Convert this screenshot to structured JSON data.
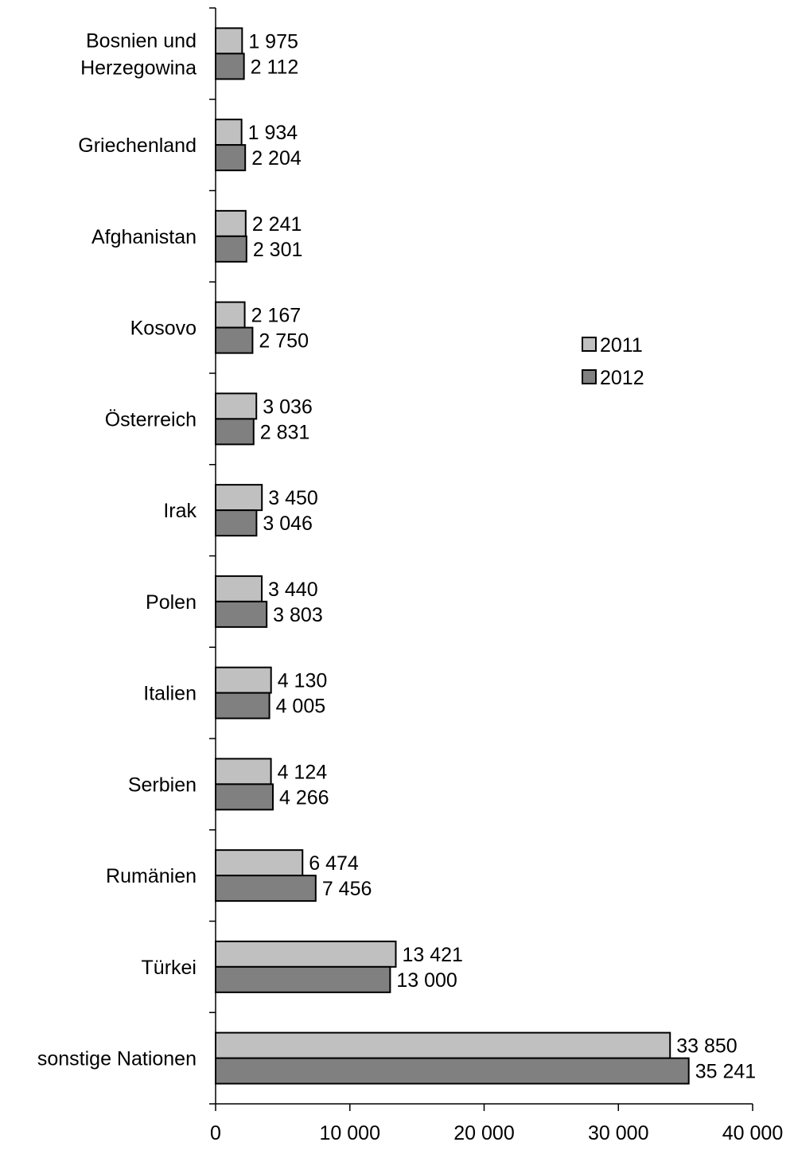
{
  "chart_data": {
    "type": "bar",
    "orientation": "horizontal",
    "categories": [
      "Bosnien und Herzegowina",
      "Griechenland",
      "Afghanistan",
      "Kosovo",
      "Österreich",
      "Irak",
      "Polen",
      "Italien",
      "Serbien",
      "Rumänien",
      "Türkei",
      "sonstige Nationen"
    ],
    "category_lines": [
      [
        "Bosnien und",
        "Herzegowina"
      ],
      [
        "Griechenland"
      ],
      [
        "Afghanistan"
      ],
      [
        "Kosovo"
      ],
      [
        "Österreich"
      ],
      [
        "Irak"
      ],
      [
        "Polen"
      ],
      [
        "Italien"
      ],
      [
        "Serbien"
      ],
      [
        "Rumänien"
      ],
      [
        "Türkei"
      ],
      [
        "sonstige Nationen"
      ]
    ],
    "series": [
      {
        "name": "2011",
        "color": "#c0c0c0",
        "values": [
          1975,
          1934,
          2241,
          2167,
          3036,
          3450,
          3440,
          4130,
          4124,
          6474,
          13421,
          33850
        ],
        "labels": [
          "1 975",
          "1 934",
          "2 241",
          "2 167",
          "3 036",
          "3 450",
          "3 440",
          "4 130",
          "4 124",
          "6 474",
          "13 421",
          "33 850"
        ]
      },
      {
        "name": "2012",
        "color": "#808080",
        "values": [
          2112,
          2204,
          2301,
          2750,
          2831,
          3046,
          3803,
          4005,
          4266,
          7456,
          13000,
          35241
        ],
        "labels": [
          "2 112",
          "2 204",
          "2 301",
          "2 750",
          "2 831",
          "3 046",
          "3 803",
          "4 005",
          "4 266",
          "7 456",
          "13 000",
          "35 241"
        ]
      }
    ],
    "xlim": [
      0,
      40000
    ],
    "xticks": [
      0,
      10000,
      20000,
      30000,
      40000
    ],
    "xtick_labels": [
      "0",
      "10 000",
      "20 000",
      "30 000",
      "40 000"
    ],
    "grid": false,
    "legend_position": "right"
  }
}
